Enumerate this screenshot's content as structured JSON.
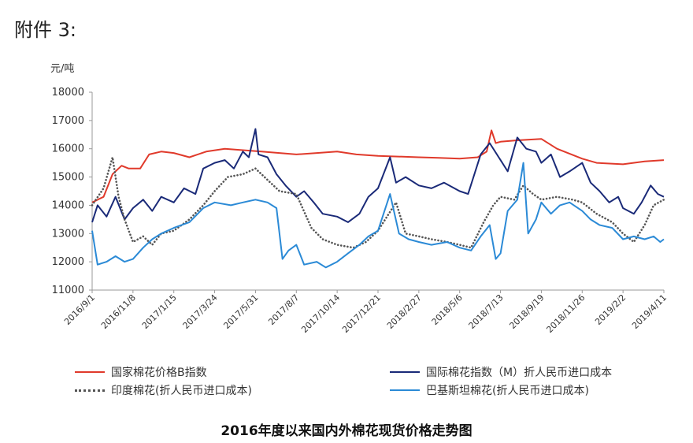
{
  "header": {
    "attachment": "附件 3:"
  },
  "caption": "2016年度以来国内外棉花现货价格走势图",
  "colors": {
    "cn": "#e03a2b",
    "intl": "#1a2a78",
    "india": "#555555",
    "pak": "#2b8ad6"
  },
  "chart_data": {
    "type": "line",
    "title": "2016年度以来国内外棉花现货价格走势图",
    "ylabel": "元/吨",
    "xlabel": "",
    "ylim": [
      11000,
      18000
    ],
    "yticks": [
      "18000",
      "17000",
      "16000",
      "15000",
      "14000",
      "13000",
      "12000",
      "11000"
    ],
    "xlim": [
      "2016-09-01",
      "2019-04-11"
    ],
    "xticks": [
      "2016/9/1",
      "2016/11/8",
      "2017/1/15",
      "2017/3/24",
      "2017/5/31",
      "2017/8/7",
      "2017/10/14",
      "2017/12/21",
      "2018/2/27",
      "2018/5/6",
      "2018/7/13",
      "2018/9/19",
      "2018/11/26",
      "2019/2/2",
      "2019/4/11"
    ],
    "grid": false,
    "legend_position": "bottom",
    "series": [
      {
        "name": "国家棉花价格B指数",
        "color": "#e03a2b",
        "style": "solid",
        "points": [
          [
            "2016-09-01",
            14100
          ],
          [
            "2016-09-20",
            14300
          ],
          [
            "2016-10-05",
            15100
          ],
          [
            "2016-10-20",
            15400
          ],
          [
            "2016-11-01",
            15300
          ],
          [
            "2016-11-20",
            15300
          ],
          [
            "2016-12-05",
            15800
          ],
          [
            "2016-12-25",
            15900
          ],
          [
            "2017-01-15",
            15850
          ],
          [
            "2017-02-10",
            15700
          ],
          [
            "2017-03-10",
            15900
          ],
          [
            "2017-04-10",
            16000
          ],
          [
            "2017-05-10",
            15950
          ],
          [
            "2017-06-10",
            15900
          ],
          [
            "2017-07-10",
            15850
          ],
          [
            "2017-08-07",
            15800
          ],
          [
            "2017-09-10",
            15850
          ],
          [
            "2017-10-14",
            15900
          ],
          [
            "2017-11-15",
            15800
          ],
          [
            "2017-12-21",
            15750
          ],
          [
            "2018-02-27",
            15700
          ],
          [
            "2018-04-01",
            15680
          ],
          [
            "2018-05-06",
            15650
          ],
          [
            "2018-06-05",
            15700
          ],
          [
            "2018-06-20",
            15900
          ],
          [
            "2018-06-28",
            16650
          ],
          [
            "2018-07-05",
            16200
          ],
          [
            "2018-07-13",
            16250
          ],
          [
            "2018-08-10",
            16300
          ],
          [
            "2018-09-19",
            16350
          ],
          [
            "2018-10-15",
            16000
          ],
          [
            "2018-11-26",
            15650
          ],
          [
            "2018-12-20",
            15500
          ],
          [
            "2019-02-02",
            15450
          ],
          [
            "2019-03-10",
            15550
          ],
          [
            "2019-04-11",
            15600
          ]
        ]
      },
      {
        "name": "国际棉花指数（M）折人民币进口成本",
        "color": "#1a2a78",
        "style": "solid",
        "points": [
          [
            "2016-09-01",
            13400
          ],
          [
            "2016-09-10",
            14000
          ],
          [
            "2016-09-25",
            13600
          ],
          [
            "2016-10-10",
            14300
          ],
          [
            "2016-10-25",
            13500
          ],
          [
            "2016-11-08",
            13900
          ],
          [
            "2016-11-25",
            14200
          ],
          [
            "2016-12-10",
            13800
          ],
          [
            "2016-12-25",
            14300
          ],
          [
            "2017-01-15",
            14100
          ],
          [
            "2017-02-01",
            14600
          ],
          [
            "2017-02-20",
            14400
          ],
          [
            "2017-03-05",
            15300
          ],
          [
            "2017-03-24",
            15500
          ],
          [
            "2017-04-10",
            15600
          ],
          [
            "2017-04-25",
            15300
          ],
          [
            "2017-05-10",
            15900
          ],
          [
            "2017-05-20",
            15700
          ],
          [
            "2017-05-31",
            16700
          ],
          [
            "2017-06-05",
            15800
          ],
          [
            "2017-06-20",
            15700
          ],
          [
            "2017-07-05",
            15100
          ],
          [
            "2017-07-20",
            14700
          ],
          [
            "2017-08-07",
            14300
          ],
          [
            "2017-08-20",
            14500
          ],
          [
            "2017-09-05",
            14100
          ],
          [
            "2017-09-20",
            13700
          ],
          [
            "2017-10-14",
            13600
          ],
          [
            "2017-11-01",
            13400
          ],
          [
            "2017-11-20",
            13700
          ],
          [
            "2017-12-05",
            14300
          ],
          [
            "2017-12-21",
            14600
          ],
          [
            "2018-01-10",
            15700
          ],
          [
            "2018-01-20",
            14800
          ],
          [
            "2018-02-05",
            15000
          ],
          [
            "2018-02-27",
            14700
          ],
          [
            "2018-03-20",
            14600
          ],
          [
            "2018-04-10",
            14800
          ],
          [
            "2018-05-06",
            14500
          ],
          [
            "2018-05-20",
            14400
          ],
          [
            "2018-06-10",
            15800
          ],
          [
            "2018-06-25",
            16200
          ],
          [
            "2018-07-13",
            15600
          ],
          [
            "2018-07-25",
            15200
          ],
          [
            "2018-08-10",
            16400
          ],
          [
            "2018-08-25",
            16000
          ],
          [
            "2018-09-10",
            15900
          ],
          [
            "2018-09-19",
            15500
          ],
          [
            "2018-10-05",
            15800
          ],
          [
            "2018-10-20",
            15000
          ],
          [
            "2018-11-05",
            15200
          ],
          [
            "2018-11-26",
            15500
          ],
          [
            "2018-12-10",
            14800
          ],
          [
            "2018-12-25",
            14500
          ],
          [
            "2019-01-10",
            14100
          ],
          [
            "2019-01-25",
            14300
          ],
          [
            "2019-02-02",
            13900
          ],
          [
            "2019-02-20",
            13700
          ],
          [
            "2019-03-05",
            14100
          ],
          [
            "2019-03-20",
            14700
          ],
          [
            "2019-04-01",
            14400
          ],
          [
            "2019-04-11",
            14300
          ]
        ]
      },
      {
        "name": "印度棉花(折人民币进口成本)",
        "color": "#555555",
        "style": "dotted",
        "points": [
          [
            "2016-09-01",
            14000
          ],
          [
            "2016-09-20",
            14600
          ],
          [
            "2016-10-05",
            15700
          ],
          [
            "2016-10-15",
            14300
          ],
          [
            "2016-10-25",
            13500
          ],
          [
            "2016-11-08",
            12700
          ],
          [
            "2016-11-25",
            12900
          ],
          [
            "2016-12-10",
            12600
          ],
          [
            "2016-12-25",
            13000
          ],
          [
            "2017-01-15",
            13100
          ],
          [
            "2017-02-10",
            13500
          ],
          [
            "2017-03-05",
            14000
          ],
          [
            "2017-03-24",
            14500
          ],
          [
            "2017-04-15",
            15000
          ],
          [
            "2017-05-10",
            15100
          ],
          [
            "2017-05-31",
            15300
          ],
          [
            "2017-06-20",
            14900
          ],
          [
            "2017-07-10",
            14500
          ],
          [
            "2017-08-07",
            14400
          ],
          [
            "2017-09-01",
            13200
          ],
          [
            "2017-09-20",
            12800
          ],
          [
            "2017-10-14",
            12600
          ],
          [
            "2017-11-10",
            12500
          ],
          [
            "2017-12-01",
            12700
          ],
          [
            "2017-12-21",
            13100
          ],
          [
            "2018-01-20",
            14100
          ],
          [
            "2018-02-05",
            13000
          ],
          [
            "2018-02-27",
            12900
          ],
          [
            "2018-03-20",
            12800
          ],
          [
            "2018-04-15",
            12700
          ],
          [
            "2018-05-06",
            12600
          ],
          [
            "2018-05-25",
            12500
          ],
          [
            "2018-06-15",
            13400
          ],
          [
            "2018-07-01",
            14000
          ],
          [
            "2018-07-13",
            14300
          ],
          [
            "2018-08-05",
            14200
          ],
          [
            "2018-08-20",
            14700
          ],
          [
            "2018-09-05",
            14400
          ],
          [
            "2018-09-19",
            14200
          ],
          [
            "2018-10-15",
            14300
          ],
          [
            "2018-11-10",
            14200
          ],
          [
            "2018-11-26",
            14100
          ],
          [
            "2018-12-20",
            13700
          ],
          [
            "2019-01-15",
            13400
          ],
          [
            "2019-02-02",
            13000
          ],
          [
            "2019-02-20",
            12700
          ],
          [
            "2019-03-10",
            13300
          ],
          [
            "2019-03-25",
            14000
          ],
          [
            "2019-04-11",
            14200
          ]
        ]
      },
      {
        "name": "巴基斯坦棉花(折人民币进口成本)",
        "color": "#2b8ad6",
        "style": "solid",
        "points": [
          [
            "2016-09-01",
            13100
          ],
          [
            "2016-09-10",
            11900
          ],
          [
            "2016-09-25",
            12000
          ],
          [
            "2016-10-10",
            12200
          ],
          [
            "2016-10-25",
            12000
          ],
          [
            "2016-11-08",
            12100
          ],
          [
            "2016-11-25",
            12500
          ],
          [
            "2016-12-10",
            12800
          ],
          [
            "2016-12-25",
            13000
          ],
          [
            "2017-01-15",
            13200
          ],
          [
            "2017-02-10",
            13400
          ],
          [
            "2017-03-05",
            13900
          ],
          [
            "2017-03-24",
            14100
          ],
          [
            "2017-04-20",
            14000
          ],
          [
            "2017-05-10",
            14100
          ],
          [
            "2017-05-31",
            14200
          ],
          [
            "2017-06-20",
            14100
          ],
          [
            "2017-07-05",
            13900
          ],
          [
            "2017-07-15",
            12100
          ],
          [
            "2017-07-25",
            12400
          ],
          [
            "2017-08-07",
            12600
          ],
          [
            "2017-08-20",
            11900
          ],
          [
            "2017-09-10",
            12000
          ],
          [
            "2017-09-25",
            11800
          ],
          [
            "2017-10-14",
            12000
          ],
          [
            "2017-11-01",
            12300
          ],
          [
            "2017-11-20",
            12600
          ],
          [
            "2017-12-05",
            12900
          ],
          [
            "2017-12-21",
            13100
          ],
          [
            "2018-01-10",
            14400
          ],
          [
            "2018-01-25",
            13000
          ],
          [
            "2018-02-10",
            12800
          ],
          [
            "2018-02-27",
            12700
          ],
          [
            "2018-03-20",
            12600
          ],
          [
            "2018-04-15",
            12700
          ],
          [
            "2018-05-06",
            12500
          ],
          [
            "2018-05-25",
            12400
          ],
          [
            "2018-06-10",
            12900
          ],
          [
            "2018-06-25",
            13300
          ],
          [
            "2018-07-05",
            12100
          ],
          [
            "2018-07-13",
            12300
          ],
          [
            "2018-07-25",
            13800
          ],
          [
            "2018-08-10",
            14200
          ],
          [
            "2018-08-20",
            15500
          ],
          [
            "2018-08-28",
            13000
          ],
          [
            "2018-09-10",
            13500
          ],
          [
            "2018-09-19",
            14100
          ],
          [
            "2018-10-05",
            13700
          ],
          [
            "2018-10-20",
            14000
          ],
          [
            "2018-11-05",
            14100
          ],
          [
            "2018-11-26",
            13800
          ],
          [
            "2018-12-10",
            13500
          ],
          [
            "2018-12-25",
            13300
          ],
          [
            "2019-01-15",
            13200
          ],
          [
            "2019-02-02",
            12800
          ],
          [
            "2019-02-20",
            12900
          ],
          [
            "2019-03-10",
            12800
          ],
          [
            "2019-03-25",
            12900
          ],
          [
            "2019-04-05",
            12700
          ],
          [
            "2019-04-11",
            12800
          ]
        ]
      }
    ]
  }
}
